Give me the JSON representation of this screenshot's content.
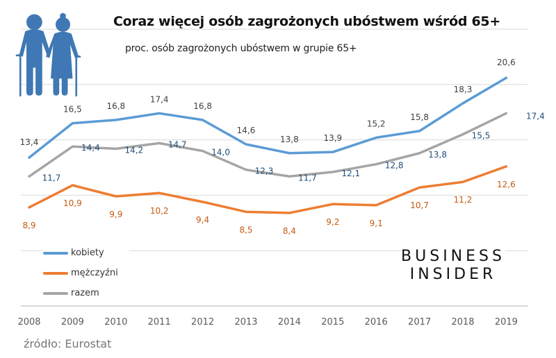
{
  "chart_data": {
    "type": "line",
    "title": "Coraz więcej osób zagrożonych ubóstwem wśród 65+",
    "subtitle": "proc. osób zagrożonych ubóstwem w grupie 65+",
    "xlabel": "",
    "ylabel": "",
    "x": [
      "2008",
      "2009",
      "2010",
      "2011",
      "2012",
      "2013",
      "2014",
      "2015",
      "2016",
      "2017",
      "2018",
      "2019"
    ],
    "ylim": [
      0,
      25
    ],
    "grid": true,
    "legend_position": "bottom-left",
    "series": [
      {
        "name": "kobiety",
        "color": "#5b9bd5",
        "label_color": "#404040",
        "values": [
          13.4,
          16.5,
          16.8,
          17.4,
          16.8,
          14.6,
          13.8,
          13.9,
          15.2,
          15.8,
          18.3,
          20.6
        ],
        "labels": [
          "13,4",
          "16,5",
          "16,8",
          "17,4",
          "16,8",
          "14,6",
          "13,8",
          "13,9",
          "15,2",
          "15,8",
          "18,3",
          "20,6"
        ]
      },
      {
        "name": "mężczyźni",
        "color": "#ed7d31",
        "label_color": "#c55a11",
        "values": [
          8.9,
          10.9,
          9.9,
          10.2,
          9.4,
          8.5,
          8.4,
          9.2,
          9.1,
          10.7,
          11.2,
          12.6
        ],
        "labels": [
          "8,9",
          "10,9",
          "9,9",
          "10,2",
          "9,4",
          "8,5",
          "8,4",
          "9,2",
          "9,1",
          "10,7",
          "11,2",
          "12,6"
        ]
      },
      {
        "name": "razem",
        "color": "#a5a5a5",
        "label_color": "#1f4e79",
        "values": [
          11.7,
          14.4,
          14.2,
          14.7,
          14.0,
          12.3,
          11.7,
          12.1,
          12.8,
          13.8,
          15.5,
          17.4
        ],
        "labels": [
          "11,7",
          "14,4",
          "14,2",
          "14,7",
          "14,0",
          "12,3",
          "11,7",
          "12,1",
          "12,8",
          "13,8",
          "15,5",
          "17,4"
        ]
      }
    ]
  },
  "source": "źródło: Eurostat",
  "logo": {
    "line1": "BUSINESS",
    "line2": "INSIDER"
  },
  "icon": "elderly-couple-icon",
  "colors": {
    "grid": "#d9d9d9",
    "axis_text": "#595959",
    "icon": "#3f78b4"
  }
}
